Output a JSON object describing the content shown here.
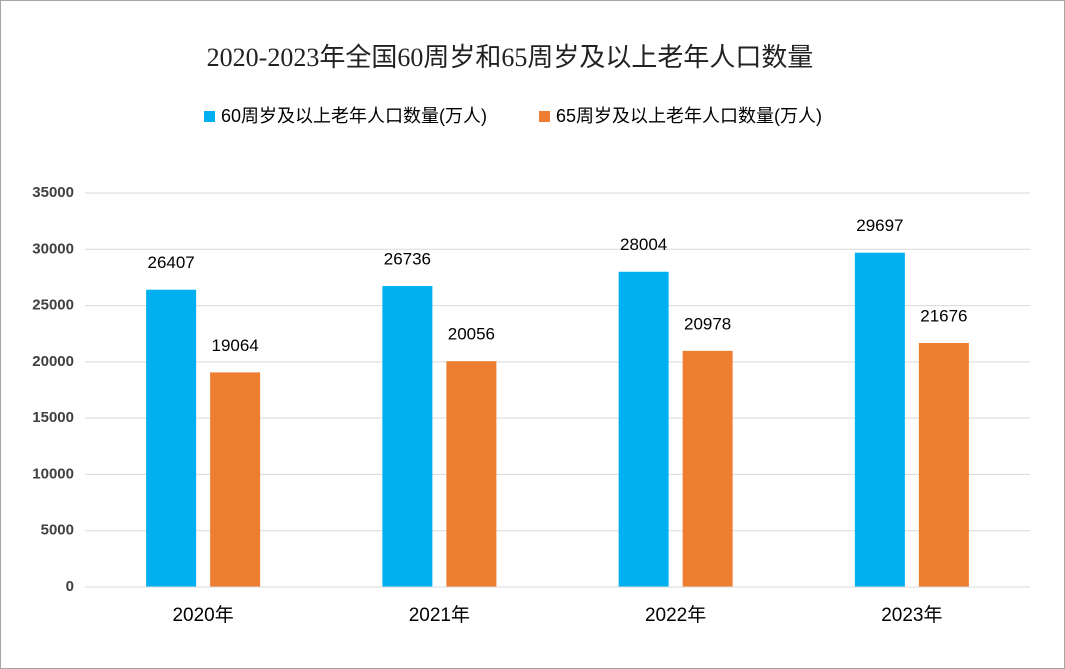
{
  "chart_data": {
    "type": "bar",
    "title": "2020-2023年全国60周岁和65周岁及以上老年人口数量",
    "categories": [
      "2020年",
      "2021年",
      "2022年",
      "2023年"
    ],
    "series": [
      {
        "name": "60周岁及以上老年人口数量(万人)",
        "color": "#00b0f0",
        "values": [
          26407,
          26736,
          28004,
          29697
        ]
      },
      {
        "name": "65周岁及以上老年人口数量(万人)",
        "color": "#ed7d31",
        "values": [
          19064,
          20056,
          20978,
          21676
        ]
      }
    ],
    "ylim": [
      0,
      35000
    ],
    "yticks": [
      0,
      5000,
      10000,
      15000,
      20000,
      25000,
      30000,
      35000
    ],
    "grid": true,
    "legend": "top"
  }
}
